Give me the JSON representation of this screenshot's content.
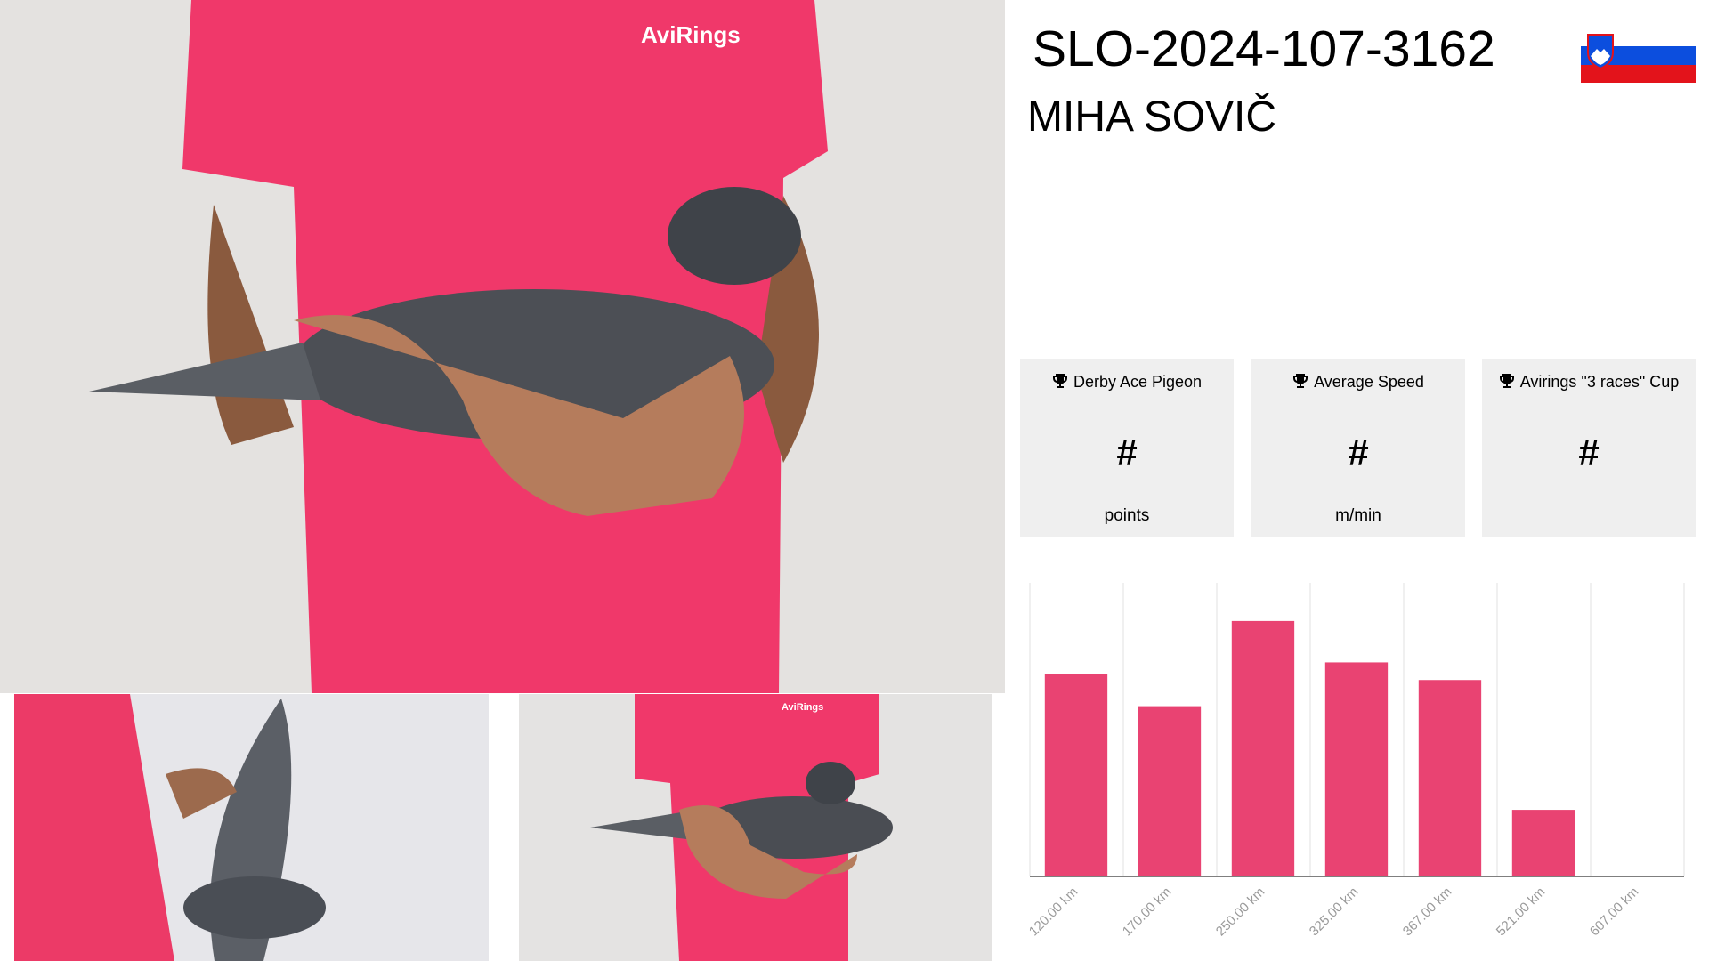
{
  "header": {
    "ring": "SLO-2024-107-3162",
    "owner": "MIHA SOVIČ"
  },
  "photos": {
    "logo_text": "AviRings"
  },
  "cards": [
    {
      "label": "Derby Ace Pigeon",
      "value": "#",
      "unit": "points"
    },
    {
      "label": "Average Speed",
      "value": "#",
      "unit": "m/min"
    },
    {
      "label": "Avirings \"3 races\" Cup",
      "value": "#",
      "unit": ""
    }
  ],
  "chart_data": {
    "type": "bar",
    "categories": [
      "120.00 km",
      "170.00 km",
      "250.00 km",
      "325.00 km",
      "367.00 km",
      "521.00 km",
      "607.00 km"
    ],
    "values": [
      68.8,
      58,
      87,
      72.9,
      66.9,
      22.7,
      0
    ],
    "color": "#e94372",
    "ylim": [
      0,
      100
    ]
  }
}
